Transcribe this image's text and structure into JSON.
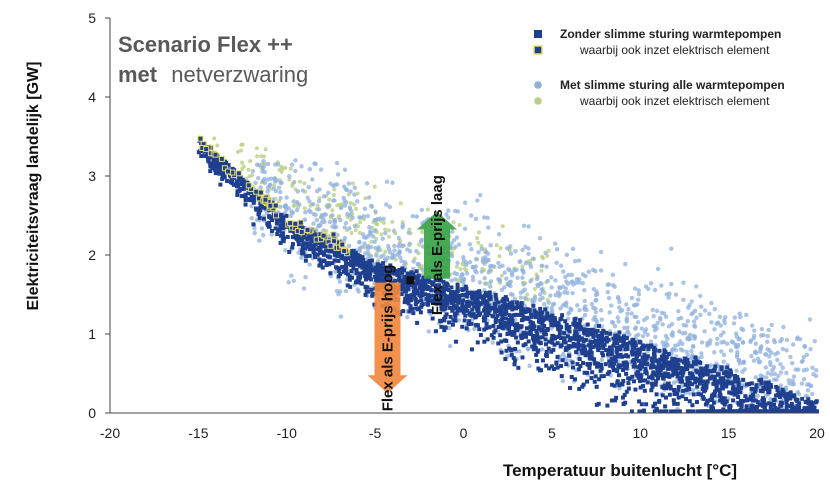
{
  "chart_data": {
    "type": "scatter",
    "xlabel": "Temperatuur  buitenlucht   [°C]",
    "ylabel": "Elektriciteitsvraag landelijk   [GW]",
    "xlim": [
      -20,
      20
    ],
    "ylim": [
      0,
      5
    ],
    "x_ticks": [
      "-20",
      "-15",
      "-10",
      "-5",
      "0",
      "5",
      "10",
      "15",
      "20"
    ],
    "y_ticks": [
      "0",
      "1",
      "2",
      "3",
      "4",
      "5"
    ],
    "grid": false,
    "legend_position": "top-right",
    "scenario_title": {
      "line1": "Scenario Flex ++",
      "line2_bold": "met",
      "line2_rest": "netverzwaring"
    },
    "series": [
      {
        "name": "Zonder slimme sturing warmtepompen",
        "marker": "square",
        "color": "#1f3f8f",
        "description_band": {
          "x_range": [
            -15,
            20
          ],
          "y_at_x": [
            [
              -15,
              3.45
            ],
            [
              -10,
              2.45
            ],
            [
              -5,
              1.9
            ],
            [
              0,
              1.6
            ],
            [
              5,
              1.25
            ],
            [
              10,
              0.9
            ],
            [
              15,
              0.55
            ],
            [
              20,
              0.15
            ]
          ]
        }
      },
      {
        "name": "waarbij ook inzet elektrisch element",
        "marker": "square-yellow-edge",
        "color": "#1f3f8f",
        "edge": "#e8e06a",
        "points": [
          [
            -15,
            3.45
          ],
          [
            -14,
            3.25
          ],
          [
            -13,
            3.1
          ],
          [
            -12,
            2.85
          ],
          [
            -11,
            2.65
          ],
          [
            -10,
            2.5
          ],
          [
            -9,
            2.4
          ],
          [
            -8,
            2.3
          ],
          [
            -7,
            2.2
          ]
        ]
      },
      {
        "name": "Met slimme sturing alle warmtepompen",
        "marker": "circle",
        "color": "#8fb0de"
      },
      {
        "name": "waarbij ook inzet elektrisch element",
        "marker": "circle",
        "color": "#b9cf86"
      }
    ],
    "annotations": [
      {
        "text": "Flex als E-prijs laag",
        "color": "#3aa346",
        "direction": "up",
        "x": -1.5,
        "y_from": 1.7,
        "y_to": 2.55
      },
      {
        "text": "Flex als E-prijs hoog",
        "color": "#f0883e",
        "direction": "down",
        "x": -4.3,
        "y_from": 1.65,
        "y_to": 0.25
      }
    ],
    "marker_point": {
      "x": -3.0,
      "y": 1.68
    }
  }
}
